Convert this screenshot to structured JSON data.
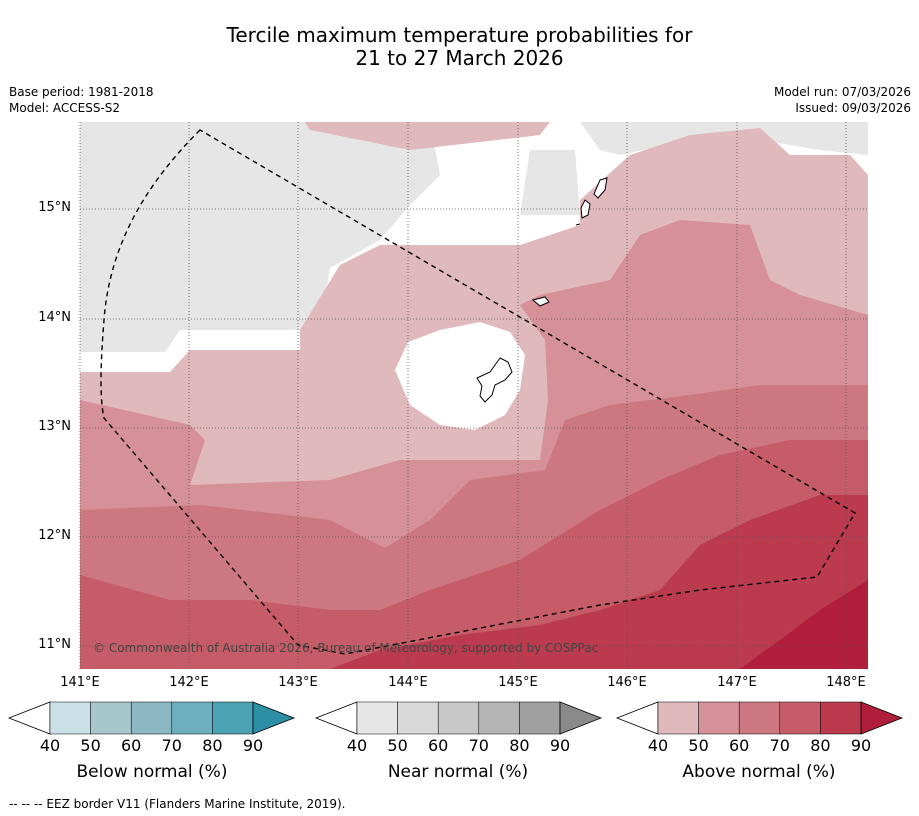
{
  "header": {
    "title_line1": "Tercile maximum temperature probabilities for",
    "title_line2": "21 to 27 March 2026",
    "base_period": "Base period: 1981-2018",
    "model": "Model: ACCESS-S2",
    "model_run": "Model run: 07/03/2026",
    "issued": "Issued: 09/03/2026"
  },
  "map": {
    "lat_labels": [
      "15°N",
      "14°N",
      "13°N",
      "12°N",
      "11°N"
    ],
    "lon_labels": [
      "141°E",
      "142°E",
      "143°E",
      "144°E",
      "145°E",
      "146°E",
      "147°E",
      "148°E"
    ],
    "copyright": "© Commonwealth of Australia 2026, Bureau of Meteorology, supported by COSPPac"
  },
  "colorbars": [
    {
      "label": "Below normal (%)",
      "ticks": [
        "40",
        "50",
        "60",
        "70",
        "80",
        "90"
      ],
      "colors": [
        "#c8e0e6",
        "#a7c7cc",
        "#8ab7c1",
        "#6dafbf",
        "#4aa2b3",
        "#2d8fa6"
      ]
    },
    {
      "label": "Near normal (%)",
      "ticks": [
        "40",
        "50",
        "60",
        "70",
        "80",
        "90"
      ],
      "colors": [
        "#e6e6e6",
        "#d9d9d9",
        "#c8c8c8",
        "#b4b4b4",
        "#a0a0a0",
        "#8a8a8a"
      ]
    },
    {
      "label": "Above normal (%)",
      "ticks": [
        "40",
        "50",
        "60",
        "70",
        "80",
        "90"
      ],
      "colors": [
        "#e0b9bd",
        "#d69097",
        "#cd7880",
        "#c55c67",
        "#bb3a4e",
        "#b01e3c"
      ]
    }
  ],
  "footnote": "--  --  -- EEZ border V11 (Flanders Marine Institute, 2019)."
}
